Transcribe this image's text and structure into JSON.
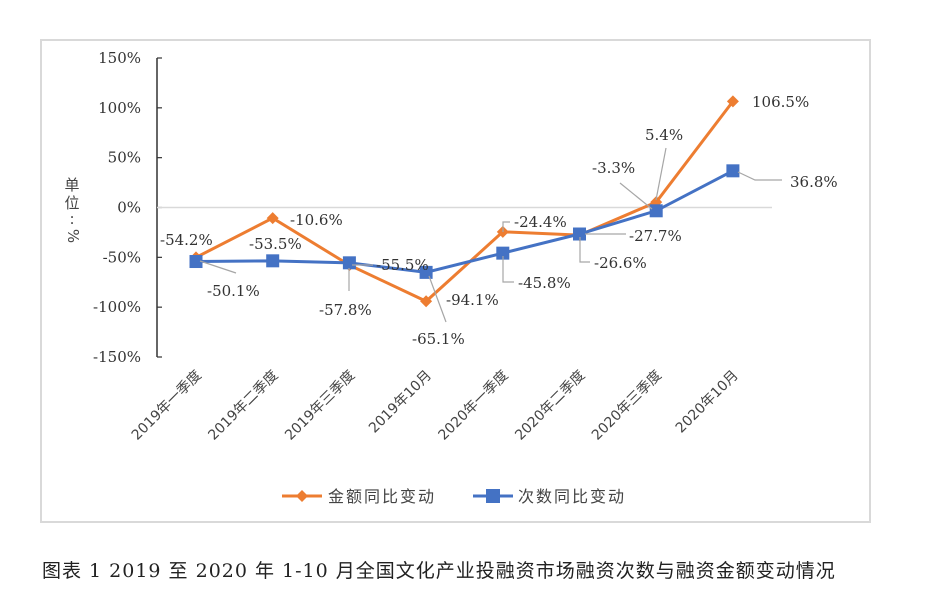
{
  "caption": "图表 1 2019 至 2020 年 1-10 月全国文化产业投融资市场融资次数与融资金额变动情况",
  "chart_data": {
    "type": "line",
    "title": "",
    "xlabel": "",
    "ylabel": "单位：%",
    "ylim": [
      -150,
      150
    ],
    "yticks": [
      "150%",
      "100%",
      "50%",
      "0%",
      "-50%",
      "-100%",
      "-150%"
    ],
    "grid": "zero-line only",
    "legend_position": "bottom",
    "categories": [
      "2019年一季度",
      "2019年二季度",
      "2019年三季度",
      "2019年10月",
      "2020年一季度",
      "2020年二季度",
      "2020年三季度",
      "2020年10月"
    ],
    "series": [
      {
        "name": "金额同比变动",
        "color": "#ED7D31",
        "marker": "diamond",
        "values": [
          -50.1,
          -10.6,
          -57.8,
          -94.1,
          -24.4,
          -27.7,
          5.4,
          106.5
        ],
        "labels": [
          "-50.1%",
          "-10.6%",
          "-57.8%",
          "-94.1%",
          "-24.4%",
          "-27.7%",
          "5.4%",
          "106.5%"
        ]
      },
      {
        "name": "次数同比变动",
        "color": "#4472C4",
        "marker": "square",
        "values": [
          -54.2,
          -53.5,
          -55.5,
          -65.1,
          -45.8,
          -26.6,
          -3.3,
          36.8
        ],
        "labels": [
          "-54.2%",
          "-53.5%",
          "-55.5%",
          "-65.1%",
          "-45.8%",
          "-26.6%",
          "-3.3%",
          "36.8%"
        ]
      }
    ]
  }
}
